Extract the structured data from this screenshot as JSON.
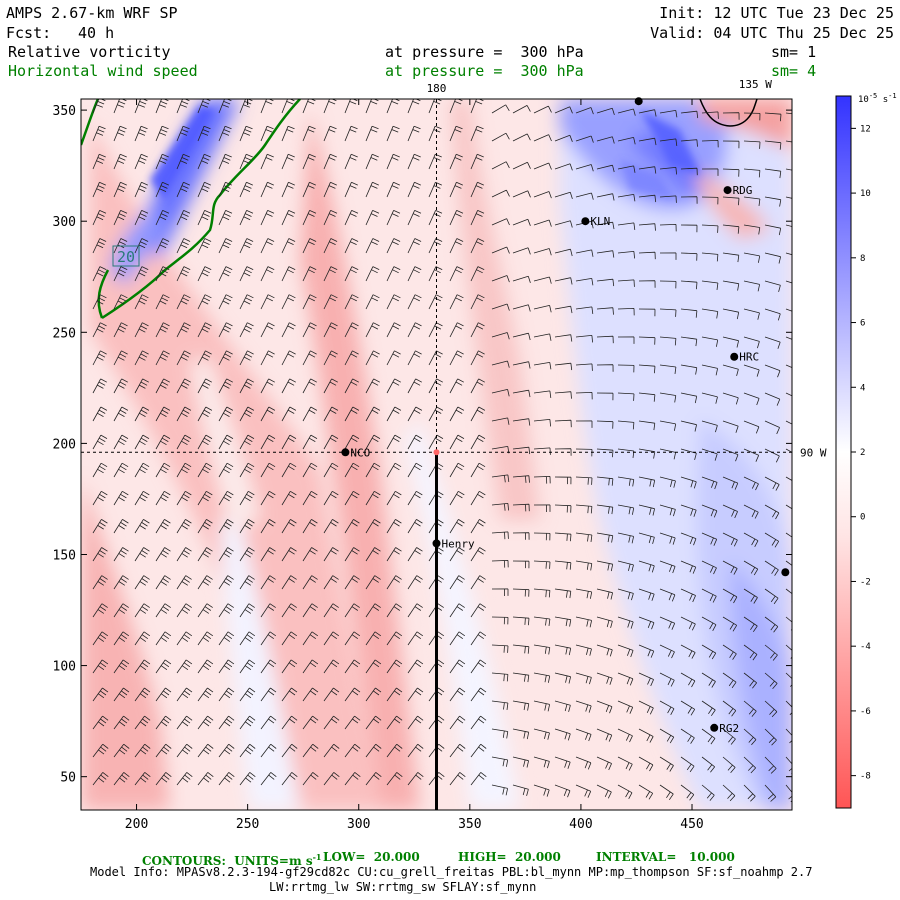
{
  "header": {
    "model": "AMPS 2.67-km WRF SP",
    "fcst_label": "Fcst:",
    "fcst_value": "40 h",
    "init": "Init: 12 UTC Tue 23 Dec 25",
    "valid": "Valid: 04 UTC Thu 25 Dec 25",
    "field1_name": "Relative vorticity",
    "field1_level": "at pressure =  300 hPa",
    "field1_sm": "sm= 1",
    "field2_name": "Horizontal wind speed",
    "field2_level": "at pressure =  300 hPa",
    "field2_sm": "sm= 4"
  },
  "footer": {
    "contours": "CONTOURS:  UNITS=m s",
    "contours_exp": "-1",
    "low": "LOW=  20.000",
    "high": "HIGH=  20.000",
    "interval": "INTERVAL=   10.000",
    "model_info": "Model Info: MPASv8.2.3-194-gf29cd82c CU:cu_grell_freitas PBL:bl_mynn MP:mp_thompson SF:sf_noahmp 2.7",
    "model_info2": "LW:rrtmg_lw SW:rrtmg_sw SFLAY:sf_mynn"
  },
  "colors": {
    "blue": "#3333ff",
    "red": "#ff4444",
    "contour": "#008000",
    "barb": "#000000"
  },
  "chart_data": {
    "type": "heatmap",
    "title": "Relative vorticity at pressure = 300 hPa with horizontal wind speed contours",
    "xlim": [
      175,
      495
    ],
    "ylim": [
      35,
      355
    ],
    "x_ticks": [
      200,
      250,
      300,
      350,
      400,
      450
    ],
    "y_ticks": [
      50,
      100,
      150,
      200,
      250,
      300,
      350
    ],
    "colorbar": {
      "units": "10",
      "units_exp": "-5",
      "units_tail": "s",
      "units_tail_exp": "-1",
      "ticks": [
        12,
        10,
        8,
        6,
        4,
        2,
        0,
        -2,
        -4,
        -6,
        -8
      ],
      "range": [
        -9,
        13
      ]
    },
    "meridians": [
      {
        "label": "180",
        "x": 335
      },
      {
        "label": "135 W",
        "x": 474
      },
      {
        "label": "90 W",
        "y": 196
      }
    ],
    "stations": [
      {
        "name": "RDG",
        "x": 466,
        "y": 314
      },
      {
        "name": "KLN",
        "x": 402,
        "y": 300
      },
      {
        "name": "HRC",
        "x": 469,
        "y": 239
      },
      {
        "name": "NCO",
        "x": 294,
        "y": 196
      },
      {
        "name": "Henry",
        "x": 335,
        "y": 155
      },
      {
        "name": "RG2",
        "x": 460,
        "y": 72
      },
      {
        "name": "",
        "x": 492,
        "y": 142
      },
      {
        "name": "",
        "x": 426,
        "y": 354
      }
    ],
    "cross_section_line": {
      "x": 335,
      "y_from": 35,
      "y_to": 196
    },
    "contour_label": "20",
    "contour_label_pos": {
      "x": 197,
      "y": 284
    }
  }
}
